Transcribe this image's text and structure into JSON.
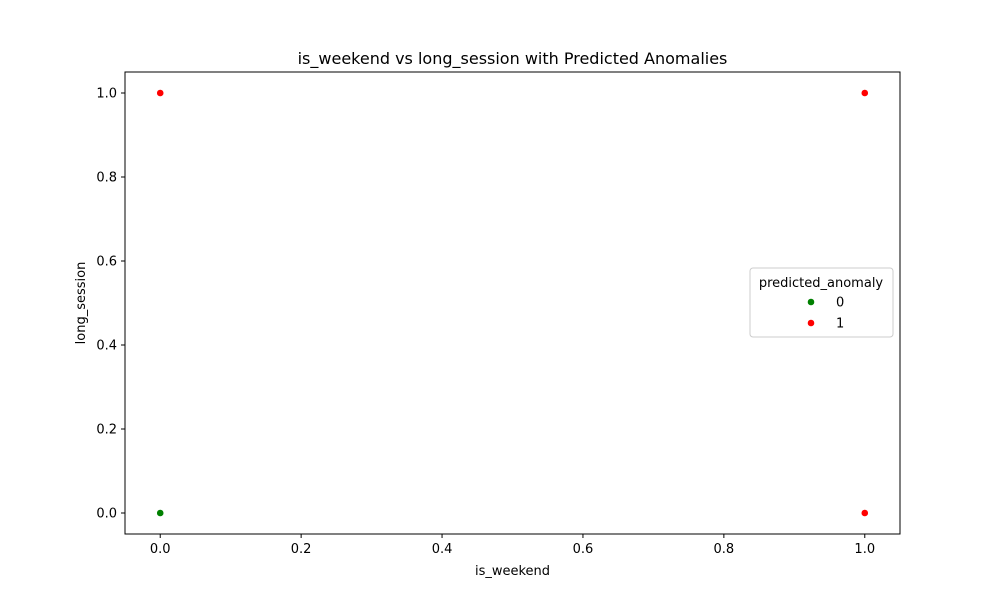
{
  "chart_data": {
    "type": "scatter",
    "title": "is_weekend vs long_session with Predicted Anomalies",
    "xlabel": "is_weekend",
    "ylabel": "long_session",
    "xlim": [
      -0.05,
      1.05
    ],
    "ylim": [
      -0.05,
      1.05
    ],
    "xticks": [
      0.0,
      0.2,
      0.4,
      0.6,
      0.8,
      1.0
    ],
    "xtick_labels": [
      "0.0",
      "0.2",
      "0.4",
      "0.6",
      "0.8",
      "1.0"
    ],
    "yticks": [
      0.0,
      0.2,
      0.4,
      0.6,
      0.8,
      1.0
    ],
    "ytick_labels": [
      "0.0",
      "0.2",
      "0.4",
      "0.6",
      "0.8",
      "1.0"
    ],
    "grid": false,
    "legend": {
      "title": "predicted_anomaly",
      "placement": "center-right"
    },
    "series": [
      {
        "name": "0",
        "color": "#008000",
        "points": [
          {
            "x": 0,
            "y": 0
          }
        ]
      },
      {
        "name": "1",
        "color": "#ff0000",
        "points": [
          {
            "x": 0,
            "y": 1
          },
          {
            "x": 1,
            "y": 1
          },
          {
            "x": 1,
            "y": 0
          }
        ]
      }
    ]
  }
}
